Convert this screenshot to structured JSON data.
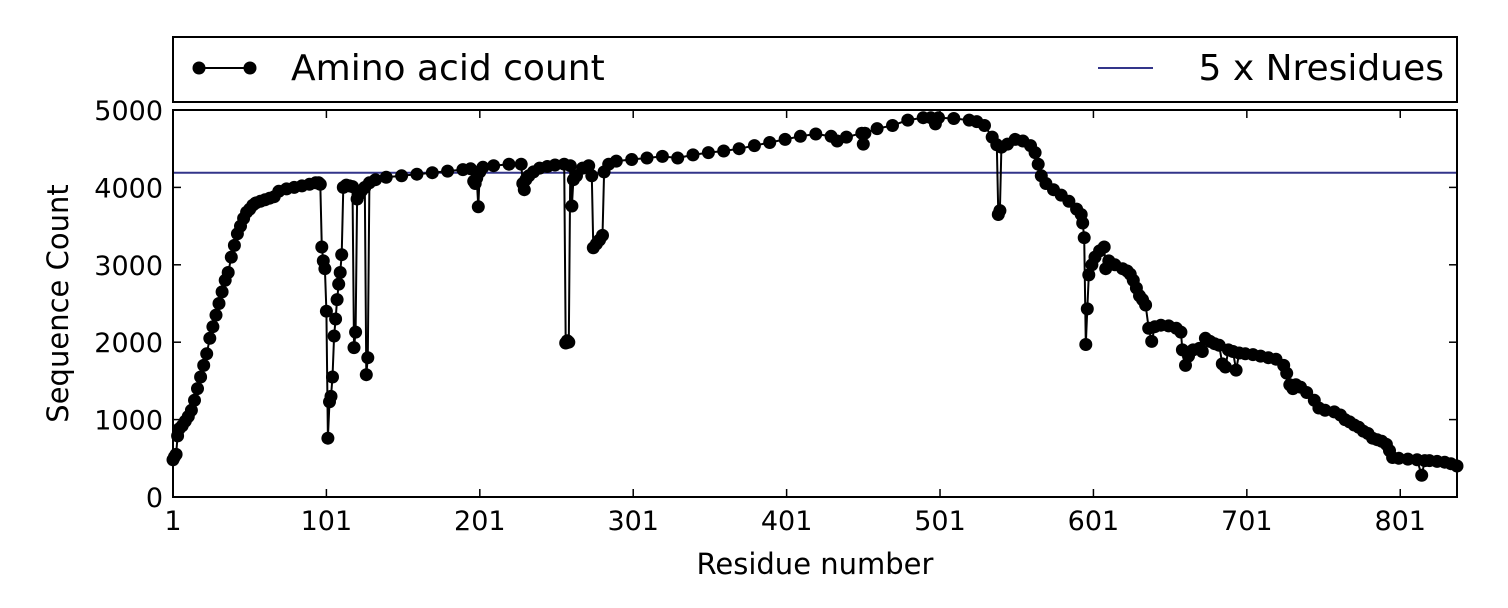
{
  "chart_data": {
    "type": "line",
    "title": "",
    "xlabel": "Residue number",
    "ylabel": "Sequence Count",
    "xlim": [
      1,
      838
    ],
    "ylim": [
      0,
      5000
    ],
    "xticks": [
      1,
      101,
      201,
      301,
      401,
      501,
      601,
      701,
      801
    ],
    "xtick_labels": [
      "1",
      "101",
      "201",
      "301",
      "401",
      "501",
      "601",
      "701",
      "801"
    ],
    "yticks": [
      0,
      1000,
      2000,
      3000,
      4000,
      5000
    ],
    "ytick_labels": [
      "0",
      "1000",
      "2000",
      "3000",
      "4000",
      "5000"
    ],
    "grid": false,
    "legend": {
      "placement": "top (outside plot, spanning width)",
      "entries": [
        "Amino acid count",
        "5 x Nresidues"
      ]
    },
    "series": [
      {
        "name": "Amino acid count",
        "style": "line-with-circle-markers",
        "color": "#000000",
        "points": [
          [
            1,
            480
          ],
          [
            2,
            520
          ],
          [
            3,
            550
          ],
          [
            4,
            790
          ],
          [
            5,
            880
          ],
          [
            7,
            920
          ],
          [
            9,
            980
          ],
          [
            11,
            1040
          ],
          [
            13,
            1120
          ],
          [
            15,
            1250
          ],
          [
            17,
            1400
          ],
          [
            19,
            1550
          ],
          [
            21,
            1700
          ],
          [
            23,
            1850
          ],
          [
            25,
            2050
          ],
          [
            27,
            2200
          ],
          [
            29,
            2350
          ],
          [
            31,
            2500
          ],
          [
            33,
            2650
          ],
          [
            35,
            2800
          ],
          [
            37,
            2900
          ],
          [
            39,
            3100
          ],
          [
            41,
            3250
          ],
          [
            43,
            3400
          ],
          [
            45,
            3500
          ],
          [
            47,
            3600
          ],
          [
            49,
            3680
          ],
          [
            51,
            3720
          ],
          [
            53,
            3770
          ],
          [
            55,
            3800
          ],
          [
            58,
            3820
          ],
          [
            61,
            3840
          ],
          [
            64,
            3860
          ],
          [
            67,
            3880
          ],
          [
            70,
            3950
          ],
          [
            75,
            3980
          ],
          [
            80,
            4000
          ],
          [
            85,
            4020
          ],
          [
            90,
            4040
          ],
          [
            94,
            4060
          ],
          [
            96,
            4060
          ],
          [
            97,
            4040
          ],
          [
            98,
            3230
          ],
          [
            99,
            3050
          ],
          [
            100,
            2950
          ],
          [
            101,
            2400
          ],
          [
            102,
            760
          ],
          [
            103,
            1230
          ],
          [
            104,
            1300
          ],
          [
            105,
            1550
          ],
          [
            106,
            2080
          ],
          [
            107,
            2300
          ],
          [
            108,
            2550
          ],
          [
            109,
            2750
          ],
          [
            110,
            2900
          ],
          [
            111,
            3130
          ],
          [
            112,
            4000
          ],
          [
            114,
            4030
          ],
          [
            116,
            4020
          ],
          [
            118,
            4010
          ],
          [
            119,
            1930
          ],
          [
            120,
            2130
          ],
          [
            121,
            3850
          ],
          [
            122,
            3900
          ],
          [
            124,
            3960
          ],
          [
            126,
            4000
          ],
          [
            127,
            1580
          ],
          [
            128,
            1800
          ],
          [
            129,
            4060
          ],
          [
            133,
            4100
          ],
          [
            140,
            4130
          ],
          [
            150,
            4150
          ],
          [
            160,
            4170
          ],
          [
            170,
            4190
          ],
          [
            180,
            4210
          ],
          [
            190,
            4230
          ],
          [
            195,
            4240
          ],
          [
            197,
            4080
          ],
          [
            198,
            4050
          ],
          [
            199,
            4120
          ],
          [
            200,
            3750
          ],
          [
            201,
            4200
          ],
          [
            203,
            4260
          ],
          [
            210,
            4280
          ],
          [
            220,
            4300
          ],
          [
            228,
            4300
          ],
          [
            229,
            4050
          ],
          [
            230,
            3970
          ],
          [
            231,
            4100
          ],
          [
            233,
            4150
          ],
          [
            236,
            4200
          ],
          [
            240,
            4250
          ],
          [
            245,
            4270
          ],
          [
            250,
            4290
          ],
          [
            256,
            4300
          ],
          [
            257,
            1990
          ],
          [
            258,
            2020
          ],
          [
            259,
            2000
          ],
          [
            260,
            4280
          ],
          [
            261,
            3760
          ],
          [
            262,
            4100
          ],
          [
            264,
            4150
          ],
          [
            268,
            4250
          ],
          [
            272,
            4280
          ],
          [
            274,
            4150
          ],
          [
            275,
            3220
          ],
          [
            277,
            3270
          ],
          [
            279,
            3320
          ],
          [
            281,
            3380
          ],
          [
            282,
            4200
          ],
          [
            285,
            4300
          ],
          [
            290,
            4340
          ],
          [
            300,
            4360
          ],
          [
            310,
            4380
          ],
          [
            320,
            4400
          ],
          [
            330,
            4380
          ],
          [
            340,
            4420
          ],
          [
            350,
            4450
          ],
          [
            360,
            4470
          ],
          [
            370,
            4500
          ],
          [
            380,
            4540
          ],
          [
            390,
            4580
          ],
          [
            400,
            4620
          ],
          [
            410,
            4660
          ],
          [
            420,
            4690
          ],
          [
            430,
            4660
          ],
          [
            434,
            4600
          ],
          [
            440,
            4650
          ],
          [
            450,
            4700
          ],
          [
            451,
            4560
          ],
          [
            452,
            4700
          ],
          [
            460,
            4760
          ],
          [
            470,
            4800
          ],
          [
            480,
            4870
          ],
          [
            490,
            4900
          ],
          [
            495,
            4900
          ],
          [
            498,
            4820
          ],
          [
            500,
            4900
          ],
          [
            510,
            4890
          ],
          [
            520,
            4870
          ],
          [
            525,
            4850
          ],
          [
            530,
            4800
          ],
          [
            535,
            4650
          ],
          [
            538,
            4550
          ],
          [
            539,
            3650
          ],
          [
            540,
            3700
          ],
          [
            541,
            4520
          ],
          [
            545,
            4560
          ],
          [
            550,
            4620
          ],
          [
            555,
            4600
          ],
          [
            560,
            4540
          ],
          [
            563,
            4450
          ],
          [
            565,
            4300
          ],
          [
            567,
            4150
          ],
          [
            570,
            4050
          ],
          [
            575,
            3970
          ],
          [
            580,
            3900
          ],
          [
            585,
            3820
          ],
          [
            590,
            3720
          ],
          [
            593,
            3650
          ],
          [
            594,
            3540
          ],
          [
            595,
            3350
          ],
          [
            596,
            1970
          ],
          [
            597,
            2430
          ],
          [
            598,
            2870
          ],
          [
            600,
            3000
          ],
          [
            602,
            3100
          ],
          [
            605,
            3180
          ],
          [
            608,
            3230
          ],
          [
            609,
            2950
          ],
          [
            611,
            3050
          ],
          [
            615,
            3000
          ],
          [
            620,
            2950
          ],
          [
            623,
            2920
          ],
          [
            625,
            2880
          ],
          [
            627,
            2800
          ],
          [
            629,
            2700
          ],
          [
            631,
            2600
          ],
          [
            633,
            2550
          ],
          [
            635,
            2480
          ],
          [
            637,
            2180
          ],
          [
            639,
            2010
          ],
          [
            641,
            2200
          ],
          [
            645,
            2220
          ],
          [
            650,
            2210
          ],
          [
            655,
            2180
          ],
          [
            658,
            2130
          ],
          [
            659,
            1900
          ],
          [
            661,
            1700
          ],
          [
            663,
            1820
          ],
          [
            666,
            1900
          ],
          [
            670,
            1920
          ],
          [
            672,
            1880
          ],
          [
            674,
            2050
          ],
          [
            677,
            2010
          ],
          [
            680,
            1980
          ],
          [
            683,
            1960
          ],
          [
            685,
            1720
          ],
          [
            687,
            1680
          ],
          [
            689,
            1900
          ],
          [
            692,
            1880
          ],
          [
            694,
            1640
          ],
          [
            696,
            1860
          ],
          [
            700,
            1850
          ],
          [
            705,
            1840
          ],
          [
            710,
            1820
          ],
          [
            715,
            1800
          ],
          [
            720,
            1780
          ],
          [
            725,
            1700
          ],
          [
            727,
            1600
          ],
          [
            729,
            1450
          ],
          [
            731,
            1400
          ],
          [
            733,
            1450
          ],
          [
            736,
            1420
          ],
          [
            740,
            1350
          ],
          [
            745,
            1250
          ],
          [
            748,
            1150
          ],
          [
            752,
            1120
          ],
          [
            758,
            1100
          ],
          [
            762,
            1060
          ],
          [
            765,
            1000
          ],
          [
            768,
            970
          ],
          [
            771,
            930
          ],
          [
            774,
            900
          ],
          [
            777,
            850
          ],
          [
            780,
            820
          ],
          [
            783,
            760
          ],
          [
            786,
            740
          ],
          [
            789,
            720
          ],
          [
            792,
            680
          ],
          [
            794,
            600
          ],
          [
            796,
            510
          ],
          [
            800,
            500
          ],
          [
            806,
            490
          ],
          [
            812,
            480
          ],
          [
            815,
            280
          ],
          [
            817,
            470
          ],
          [
            820,
            470
          ],
          [
            825,
            460
          ],
          [
            830,
            450
          ],
          [
            834,
            430
          ],
          [
            838,
            400
          ]
        ]
      },
      {
        "name": "5 x Nresidues",
        "style": "horizontal-line",
        "color": "#33358a",
        "y": 4190
      }
    ]
  }
}
